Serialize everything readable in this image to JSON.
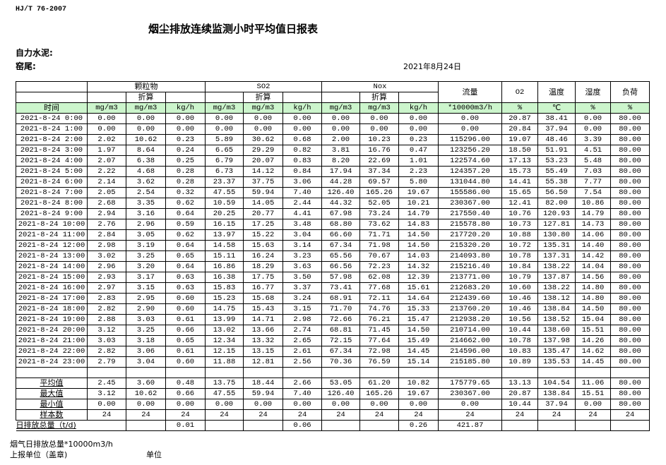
{
  "header": {
    "standard": "HJ/T  76-2007",
    "title": "烟尘排放连续监测小时平均值日报表",
    "company": "自力水泥:",
    "kiln": "窑尾:",
    "date": "2021年8月24日"
  },
  "table": {
    "groups": [
      "颗粒物",
      "SO2",
      "Nox"
    ],
    "converted": "折算",
    "other_headers": [
      "流量",
      "O2",
      "温度",
      "湿度",
      "负荷"
    ],
    "time_label": "时间",
    "units": [
      "mg/m3",
      "mg/m3",
      "kg/h",
      "mg/m3",
      "mg/m3",
      "kg/h",
      "mg/m3",
      "mg/m3",
      "kg/h",
      "*10000m3/h",
      "%",
      "℃",
      "%",
      "%"
    ],
    "rows": [
      [
        "2021-8-24 0:00",
        "0.00",
        "0.00",
        "0.00",
        "0.00",
        "0.00",
        "0.00",
        "0.00",
        "0.00",
        "0.00",
        "0.00",
        "20.87",
        "38.41",
        "0.00",
        "80.00"
      ],
      [
        "2021-8-24 1:00",
        "0.00",
        "0.00",
        "0.00",
        "0.00",
        "0.00",
        "0.00",
        "0.00",
        "0.00",
        "0.00",
        "0.00",
        "20.84",
        "37.94",
        "0.00",
        "80.00"
      ],
      [
        "2021-8-24 2:00",
        "2.02",
        "10.62",
        "0.23",
        "5.89",
        "30.62",
        "0.68",
        "2.00",
        "10.23",
        "0.23",
        "115296.00",
        "19.07",
        "48.46",
        "3.39",
        "80.00"
      ],
      [
        "2021-8-24 3:00",
        "1.97",
        "8.64",
        "0.24",
        "6.65",
        "29.29",
        "0.82",
        "3.81",
        "16.76",
        "0.47",
        "123256.20",
        "18.50",
        "51.91",
        "4.51",
        "80.00"
      ],
      [
        "2021-8-24 4:00",
        "2.07",
        "6.38",
        "0.25",
        "6.79",
        "20.07",
        "0.83",
        "8.20",
        "22.69",
        "1.01",
        "122574.60",
        "17.13",
        "53.23",
        "5.48",
        "80.00"
      ],
      [
        "2021-8-24 5:00",
        "2.22",
        "4.68",
        "0.28",
        "6.73",
        "14.12",
        "0.84",
        "17.94",
        "37.34",
        "2.23",
        "124357.20",
        "15.73",
        "55.49",
        "7.03",
        "80.00"
      ],
      [
        "2021-8-24 6:00",
        "2.14",
        "3.62",
        "0.28",
        "23.37",
        "37.75",
        "3.06",
        "44.28",
        "69.57",
        "5.80",
        "131044.80",
        "14.41",
        "55.38",
        "7.77",
        "80.00"
      ],
      [
        "2021-8-24 7:00",
        "2.05",
        "2.54",
        "0.32",
        "47.55",
        "59.94",
        "7.40",
        "126.40",
        "165.26",
        "19.67",
        "155586.00",
        "15.65",
        "56.50",
        "7.54",
        "80.00"
      ],
      [
        "2021-8-24 8:00",
        "2.68",
        "3.35",
        "0.62",
        "10.59",
        "14.05",
        "2.44",
        "44.32",
        "52.05",
        "10.21",
        "230367.00",
        "12.41",
        "82.00",
        "10.86",
        "80.00"
      ],
      [
        "2021-8-24 9:00",
        "2.94",
        "3.16",
        "0.64",
        "20.25",
        "20.77",
        "4.41",
        "67.98",
        "73.24",
        "14.79",
        "217550.40",
        "10.76",
        "120.93",
        "14.79",
        "80.00"
      ],
      [
        "2021-8-24 10:00",
        "2.76",
        "2.96",
        "0.59",
        "16.15",
        "17.25",
        "3.48",
        "68.80",
        "73.62",
        "14.83",
        "215578.80",
        "10.73",
        "127.81",
        "14.73",
        "80.00"
      ],
      [
        "2021-8-24 11:00",
        "2.84",
        "3.05",
        "0.62",
        "13.97",
        "15.22",
        "3.04",
        "66.60",
        "71.71",
        "14.50",
        "217720.20",
        "10.88",
        "130.80",
        "14.06",
        "80.00"
      ],
      [
        "2021-8-24 12:00",
        "2.98",
        "3.19",
        "0.64",
        "14.58",
        "15.63",
        "3.14",
        "67.34",
        "71.98",
        "14.50",
        "215320.20",
        "10.72",
        "135.31",
        "14.40",
        "80.00"
      ],
      [
        "2021-8-24 13:00",
        "3.02",
        "3.25",
        "0.65",
        "15.11",
        "16.24",
        "3.23",
        "65.56",
        "70.67",
        "14.03",
        "214093.80",
        "10.78",
        "137.31",
        "14.42",
        "80.00"
      ],
      [
        "2021-8-24 14:00",
        "2.96",
        "3.20",
        "0.64",
        "16.86",
        "18.29",
        "3.63",
        "66.56",
        "72.23",
        "14.32",
        "215216.40",
        "10.84",
        "138.22",
        "14.04",
        "80.00"
      ],
      [
        "2021-8-24 15:00",
        "2.93",
        "3.17",
        "0.63",
        "16.38",
        "17.75",
        "3.50",
        "57.98",
        "62.08",
        "12.39",
        "213771.00",
        "10.79",
        "137.87",
        "14.56",
        "80.00"
      ],
      [
        "2021-8-24 16:00",
        "2.97",
        "3.15",
        "0.63",
        "15.83",
        "16.77",
        "3.37",
        "73.41",
        "77.68",
        "15.61",
        "212683.20",
        "10.60",
        "138.22",
        "14.80",
        "80.00"
      ],
      [
        "2021-8-24 17:00",
        "2.83",
        "2.95",
        "0.60",
        "15.23",
        "15.68",
        "3.24",
        "68.91",
        "72.11",
        "14.64",
        "212439.60",
        "10.46",
        "138.12",
        "14.80",
        "80.00"
      ],
      [
        "2021-8-24 18:00",
        "2.82",
        "2.90",
        "0.60",
        "14.75",
        "15.43",
        "3.15",
        "71.70",
        "74.76",
        "15.33",
        "213760.20",
        "10.46",
        "138.84",
        "14.50",
        "80.00"
      ],
      [
        "2021-8-24 19:00",
        "2.88",
        "3.03",
        "0.61",
        "13.99",
        "14.71",
        "2.98",
        "72.66",
        "76.21",
        "15.47",
        "212938.20",
        "10.56",
        "138.52",
        "15.04",
        "80.00"
      ],
      [
        "2021-8-24 20:00",
        "3.12",
        "3.25",
        "0.66",
        "13.02",
        "13.66",
        "2.74",
        "68.81",
        "71.45",
        "14.50",
        "210714.00",
        "10.44",
        "138.60",
        "15.51",
        "80.00"
      ],
      [
        "2021-8-24 21:00",
        "3.03",
        "3.18",
        "0.65",
        "12.34",
        "13.32",
        "2.65",
        "72.15",
        "77.64",
        "15.49",
        "214662.00",
        "10.78",
        "137.98",
        "14.26",
        "80.00"
      ],
      [
        "2021-8-24 22:00",
        "2.82",
        "3.06",
        "0.61",
        "12.15",
        "13.15",
        "2.61",
        "67.34",
        "72.98",
        "14.45",
        "214596.00",
        "10.83",
        "135.47",
        "14.62",
        "80.00"
      ],
      [
        "2021-8-24 23:00",
        "2.79",
        "3.04",
        "0.60",
        "11.88",
        "12.81",
        "2.56",
        "70.36",
        "76.59",
        "15.14",
        "215185.80",
        "10.89",
        "135.53",
        "14.45",
        "80.00"
      ]
    ],
    "summary": [
      [
        "平均值",
        "2.45",
        "3.60",
        "0.48",
        "13.75",
        "18.44",
        "2.66",
        "53.05",
        "61.20",
        "10.82",
        "175779.65",
        "13.13",
        "104.54",
        "11.06",
        "80.00"
      ],
      [
        "最大值",
        "3.12",
        "10.62",
        "0.66",
        "47.55",
        "59.94",
        "7.40",
        "126.40",
        "165.26",
        "19.67",
        "230367.00",
        "20.87",
        "138.84",
        "15.51",
        "80.00"
      ],
      [
        "最小值",
        "0.00",
        "0.00",
        "0.00",
        "0.00",
        "0.00",
        "0.00",
        "0.00",
        "0.00",
        "0.00",
        "0.00",
        "10.44",
        "37.94",
        "0.00",
        "80.00"
      ],
      [
        "样本数",
        "24",
        "24",
        "24",
        "24",
        "24",
        "24",
        "24",
        "24",
        "24",
        "24",
        "24",
        "24",
        "24",
        "24"
      ]
    ],
    "daily_total": {
      "label": "日排放总量（t/d)",
      "values": [
        "",
        "0.01",
        "",
        "",
        "0.06",
        "",
        "",
        "0.26",
        "421.87",
        "",
        "",
        "",
        ""
      ]
    }
  },
  "footer": {
    "flue_total": "烟气日排放总量*10000m3/h",
    "report_unit": "上报单位（盖章)",
    "unit": "单位"
  }
}
